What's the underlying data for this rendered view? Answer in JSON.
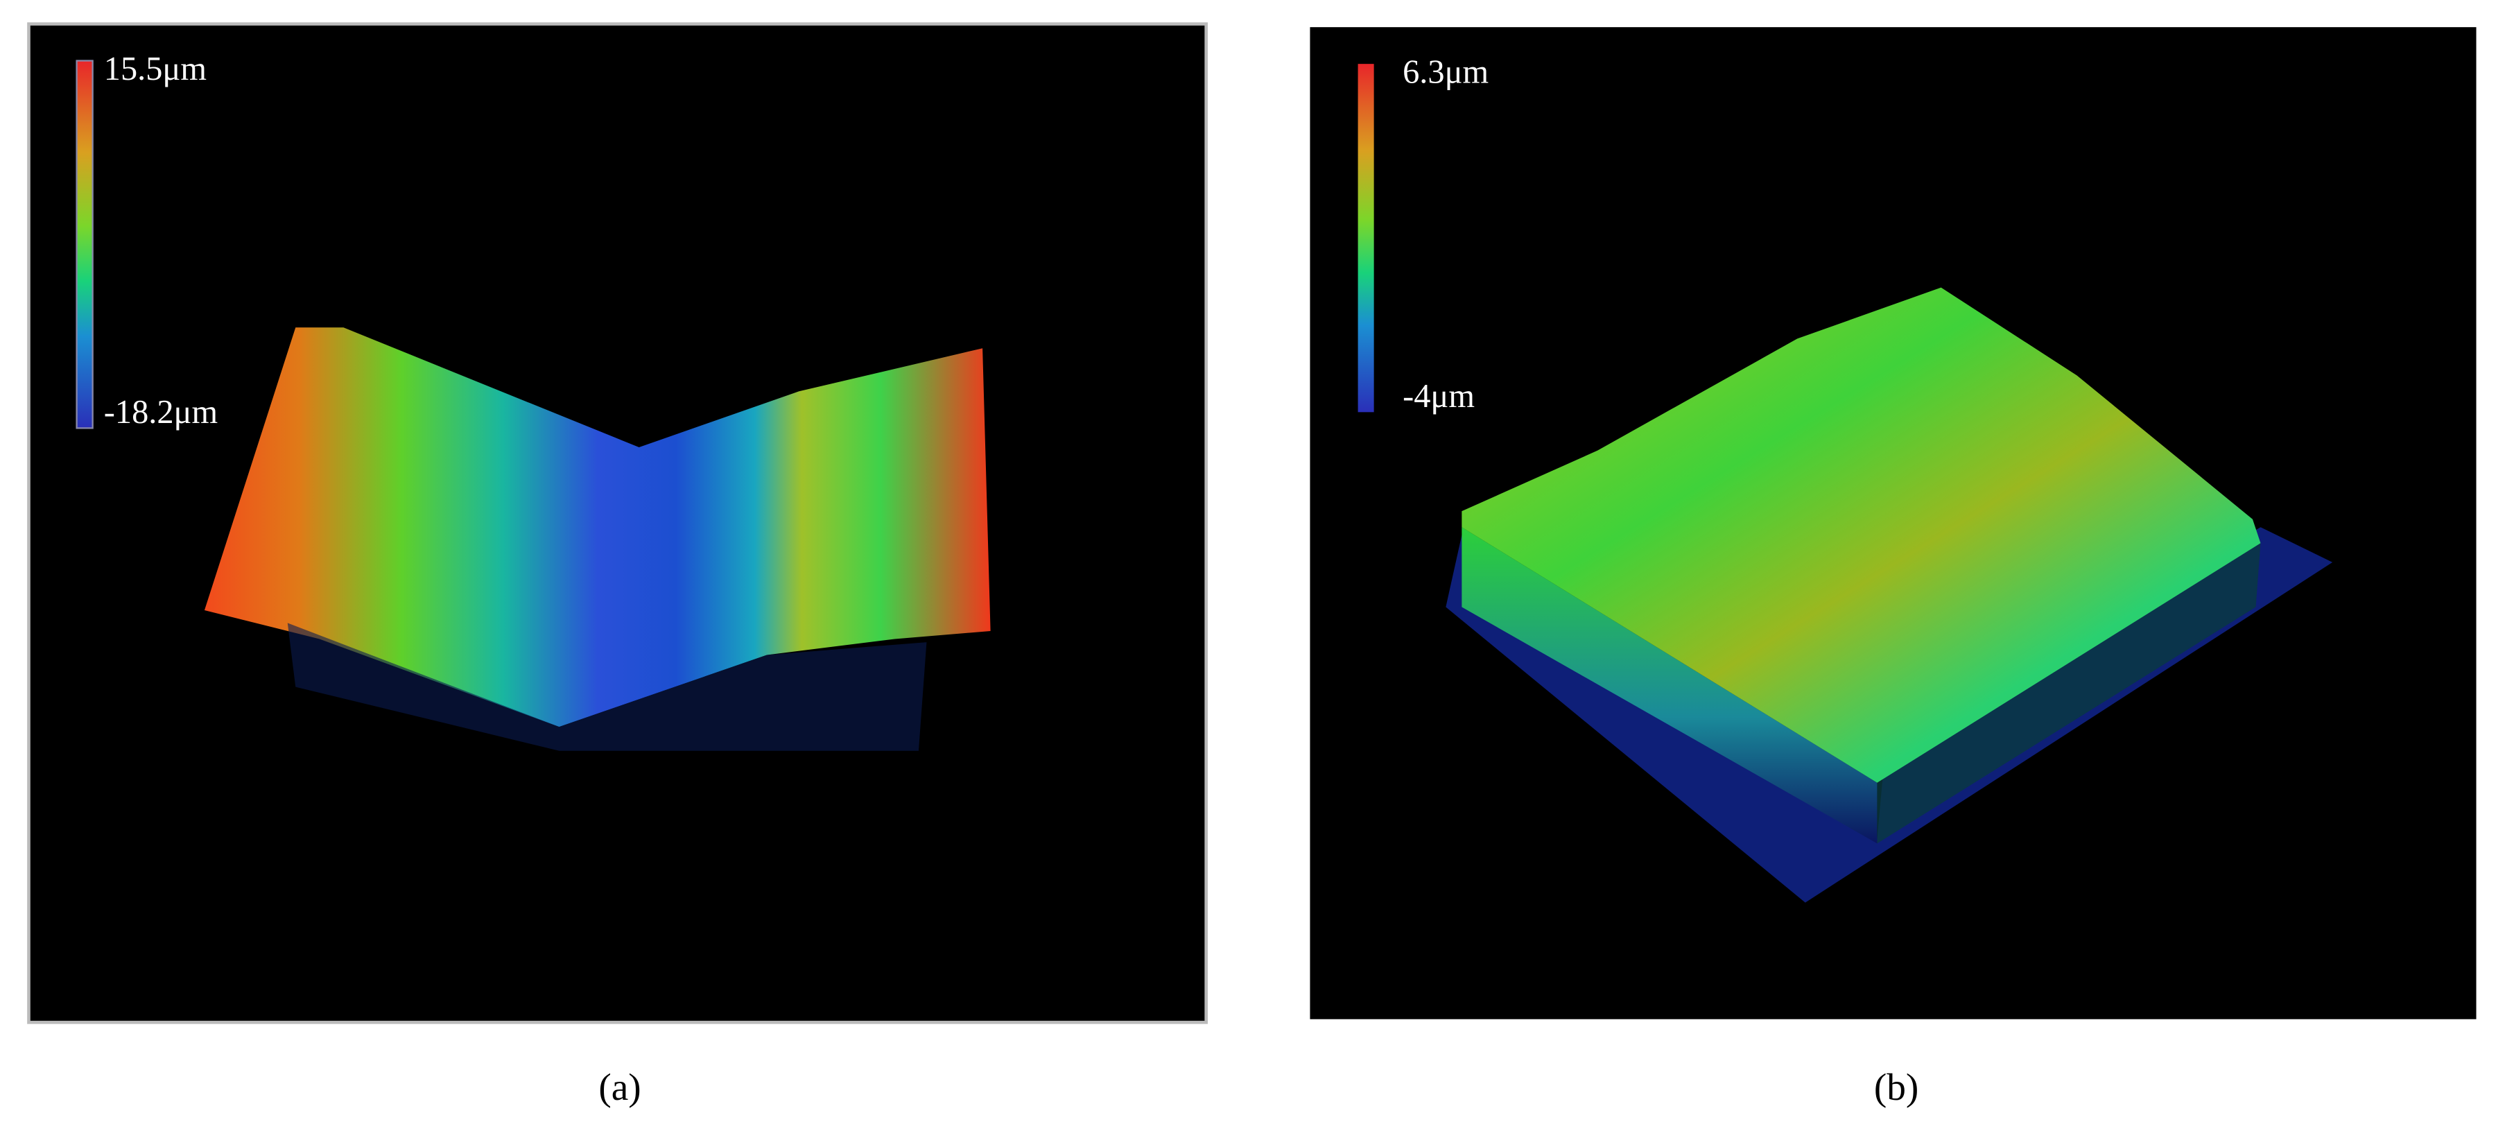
{
  "panels": [
    {
      "label": "(a)",
      "scale_max": "15.5μm",
      "scale_min": "-18.2μm"
    },
    {
      "label": "(b)",
      "scale_max": "6.3μm",
      "scale_min": "-4μm"
    }
  ]
}
